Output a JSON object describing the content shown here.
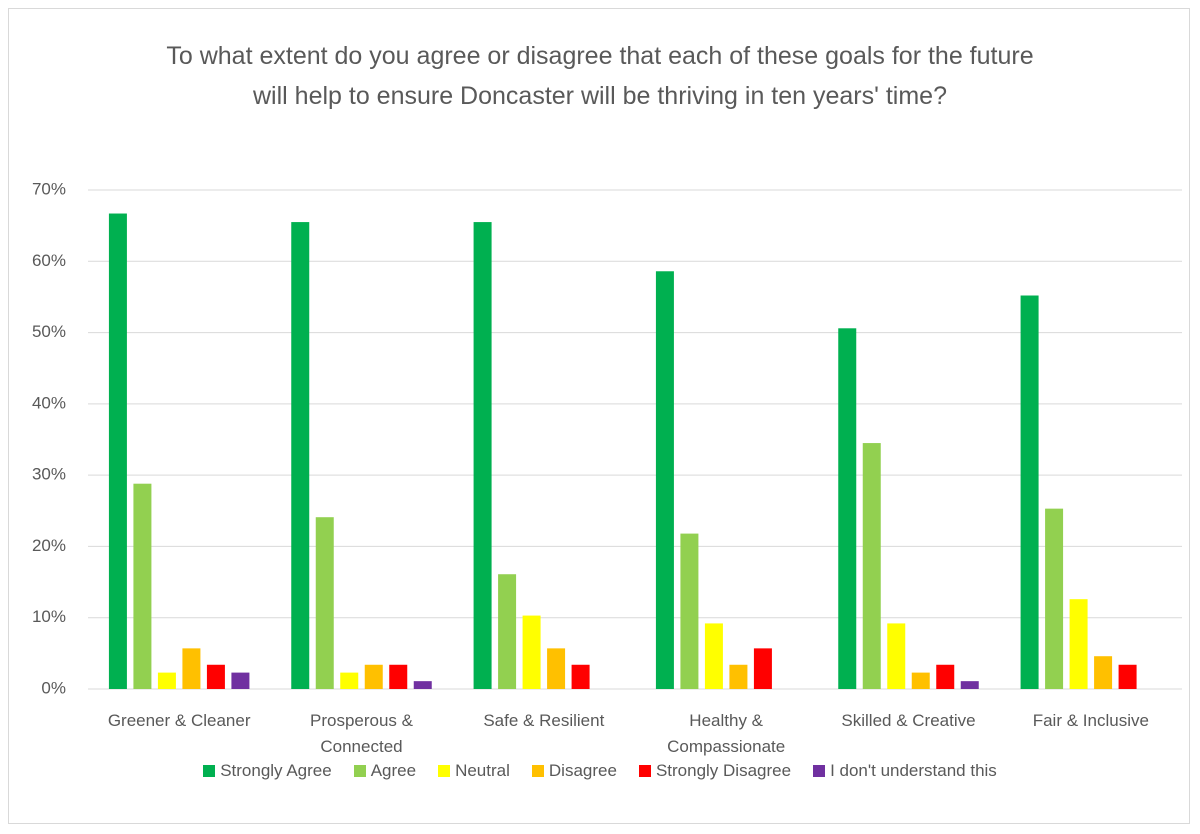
{
  "chart_data": {
    "type": "bar",
    "title": "To what extent do you agree or disagree that each of these goals for the future will help to ensure Doncaster will be thriving in ten years' time?",
    "categories": [
      "Greener & Cleaner",
      "Prosperous & Connected",
      "Safe & Resilient",
      "Healthy & Compassionate",
      "Skilled & Creative",
      "Fair & Inclusive"
    ],
    "series": [
      {
        "name": "Strongly Agree",
        "color": "#00b050",
        "values": [
          66.7,
          65.5,
          65.5,
          58.6,
          50.6,
          55.2
        ]
      },
      {
        "name": "Agree",
        "color": "#92d050",
        "values": [
          28.8,
          24.1,
          16.1,
          21.8,
          34.5,
          25.3
        ]
      },
      {
        "name": "Neutral",
        "color": "#ffff00",
        "values": [
          2.3,
          2.3,
          10.3,
          9.2,
          9.2,
          12.6
        ]
      },
      {
        "name": "Disagree",
        "color": "#ffc000",
        "values": [
          5.7,
          3.4,
          5.7,
          3.4,
          2.3,
          4.6
        ]
      },
      {
        "name": "Strongly Disagree",
        "color": "#ff0000",
        "values": [
          3.4,
          3.4,
          3.4,
          5.7,
          3.4,
          3.4
        ]
      },
      {
        "name": "I don't understand this",
        "color": "#7030a0",
        "values": [
          2.3,
          1.1,
          0,
          0,
          1.1,
          0
        ]
      }
    ],
    "ylim": [
      0,
      70
    ],
    "yticks": [
      {
        "value": 0,
        "label": "0%"
      },
      {
        "value": 10,
        "label": "10%"
      },
      {
        "value": 20,
        "label": "20%"
      },
      {
        "value": 30,
        "label": "30%"
      },
      {
        "value": 40,
        "label": "40%"
      },
      {
        "value": 50,
        "label": "50%"
      },
      {
        "value": 60,
        "label": "60%"
      },
      {
        "value": 70,
        "label": "70%"
      }
    ],
    "grid": true,
    "legend": "bottom"
  }
}
